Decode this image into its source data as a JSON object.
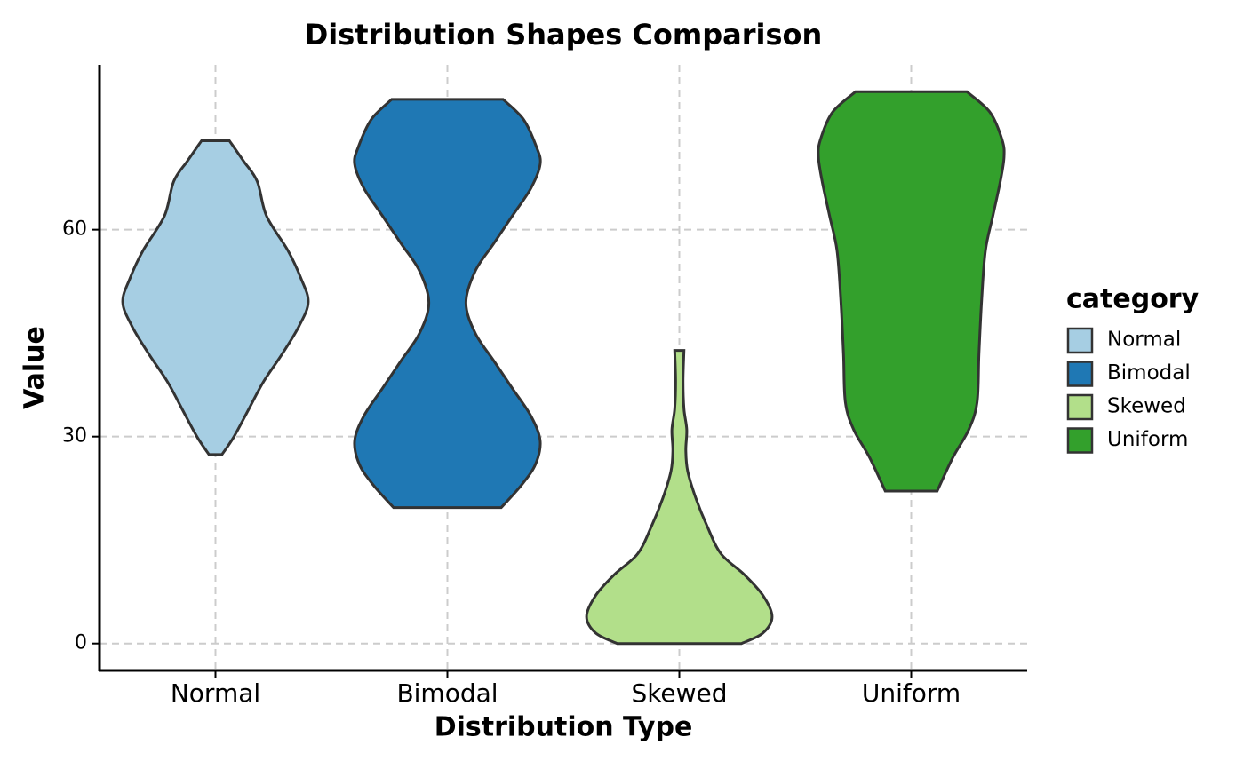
{
  "chart_data": {
    "type": "violin",
    "title": "Distribution Shapes Comparison",
    "x_label": "Distribution Type",
    "y_label": "Value",
    "legend_title": "category",
    "categories": [
      "Normal",
      "Bimodal",
      "Skewed",
      "Uniform"
    ],
    "ylim": [
      -3.9,
      83.9
    ],
    "yticks": [
      0,
      30,
      60
    ],
    "grid": true,
    "legend_position": "right",
    "series": [
      {
        "name": "Normal",
        "color": "#a6cee3",
        "y": [
          72.9,
          70,
          67,
          62,
          57,
          53,
          49.5,
          46,
          42,
          38,
          34,
          30,
          27.4
        ],
        "density": [
          0.15,
          0.3,
          0.45,
          0.55,
          0.78,
          0.92,
          1.0,
          0.9,
          0.72,
          0.52,
          0.36,
          0.2,
          0.07
        ]
      },
      {
        "name": "Bimodal",
        "color": "#1f78b4",
        "y": [
          78.9,
          76,
          72,
          69.5,
          66,
          62,
          58,
          54,
          49.4,
          45,
          41,
          37,
          33,
          29.4,
          26,
          23,
          19.7
        ],
        "density": [
          0.6,
          0.82,
          0.96,
          1.0,
          0.9,
          0.7,
          0.5,
          0.3,
          0.2,
          0.3,
          0.5,
          0.7,
          0.9,
          1.0,
          0.95,
          0.8,
          0.58
        ]
      },
      {
        "name": "Skewed",
        "color": "#b2df8a",
        "y": [
          42.5,
          38,
          34,
          31,
          28,
          25,
          21,
          17,
          13,
          10,
          7,
          3.9,
          1.5,
          0
        ],
        "density": [
          0.05,
          0.04,
          0.05,
          0.08,
          0.07,
          0.09,
          0.18,
          0.3,
          0.45,
          0.7,
          0.9,
          1.0,
          0.9,
          0.67
        ]
      },
      {
        "name": "Uniform",
        "color": "#33a02c",
        "y": [
          80,
          77,
          73,
          70.5,
          67,
          62,
          57,
          50,
          42,
          35,
          31,
          27,
          22.1
        ],
        "density": [
          0.6,
          0.85,
          0.98,
          1.0,
          0.96,
          0.88,
          0.8,
          0.76,
          0.73,
          0.71,
          0.62,
          0.45,
          0.28
        ]
      }
    ]
  }
}
